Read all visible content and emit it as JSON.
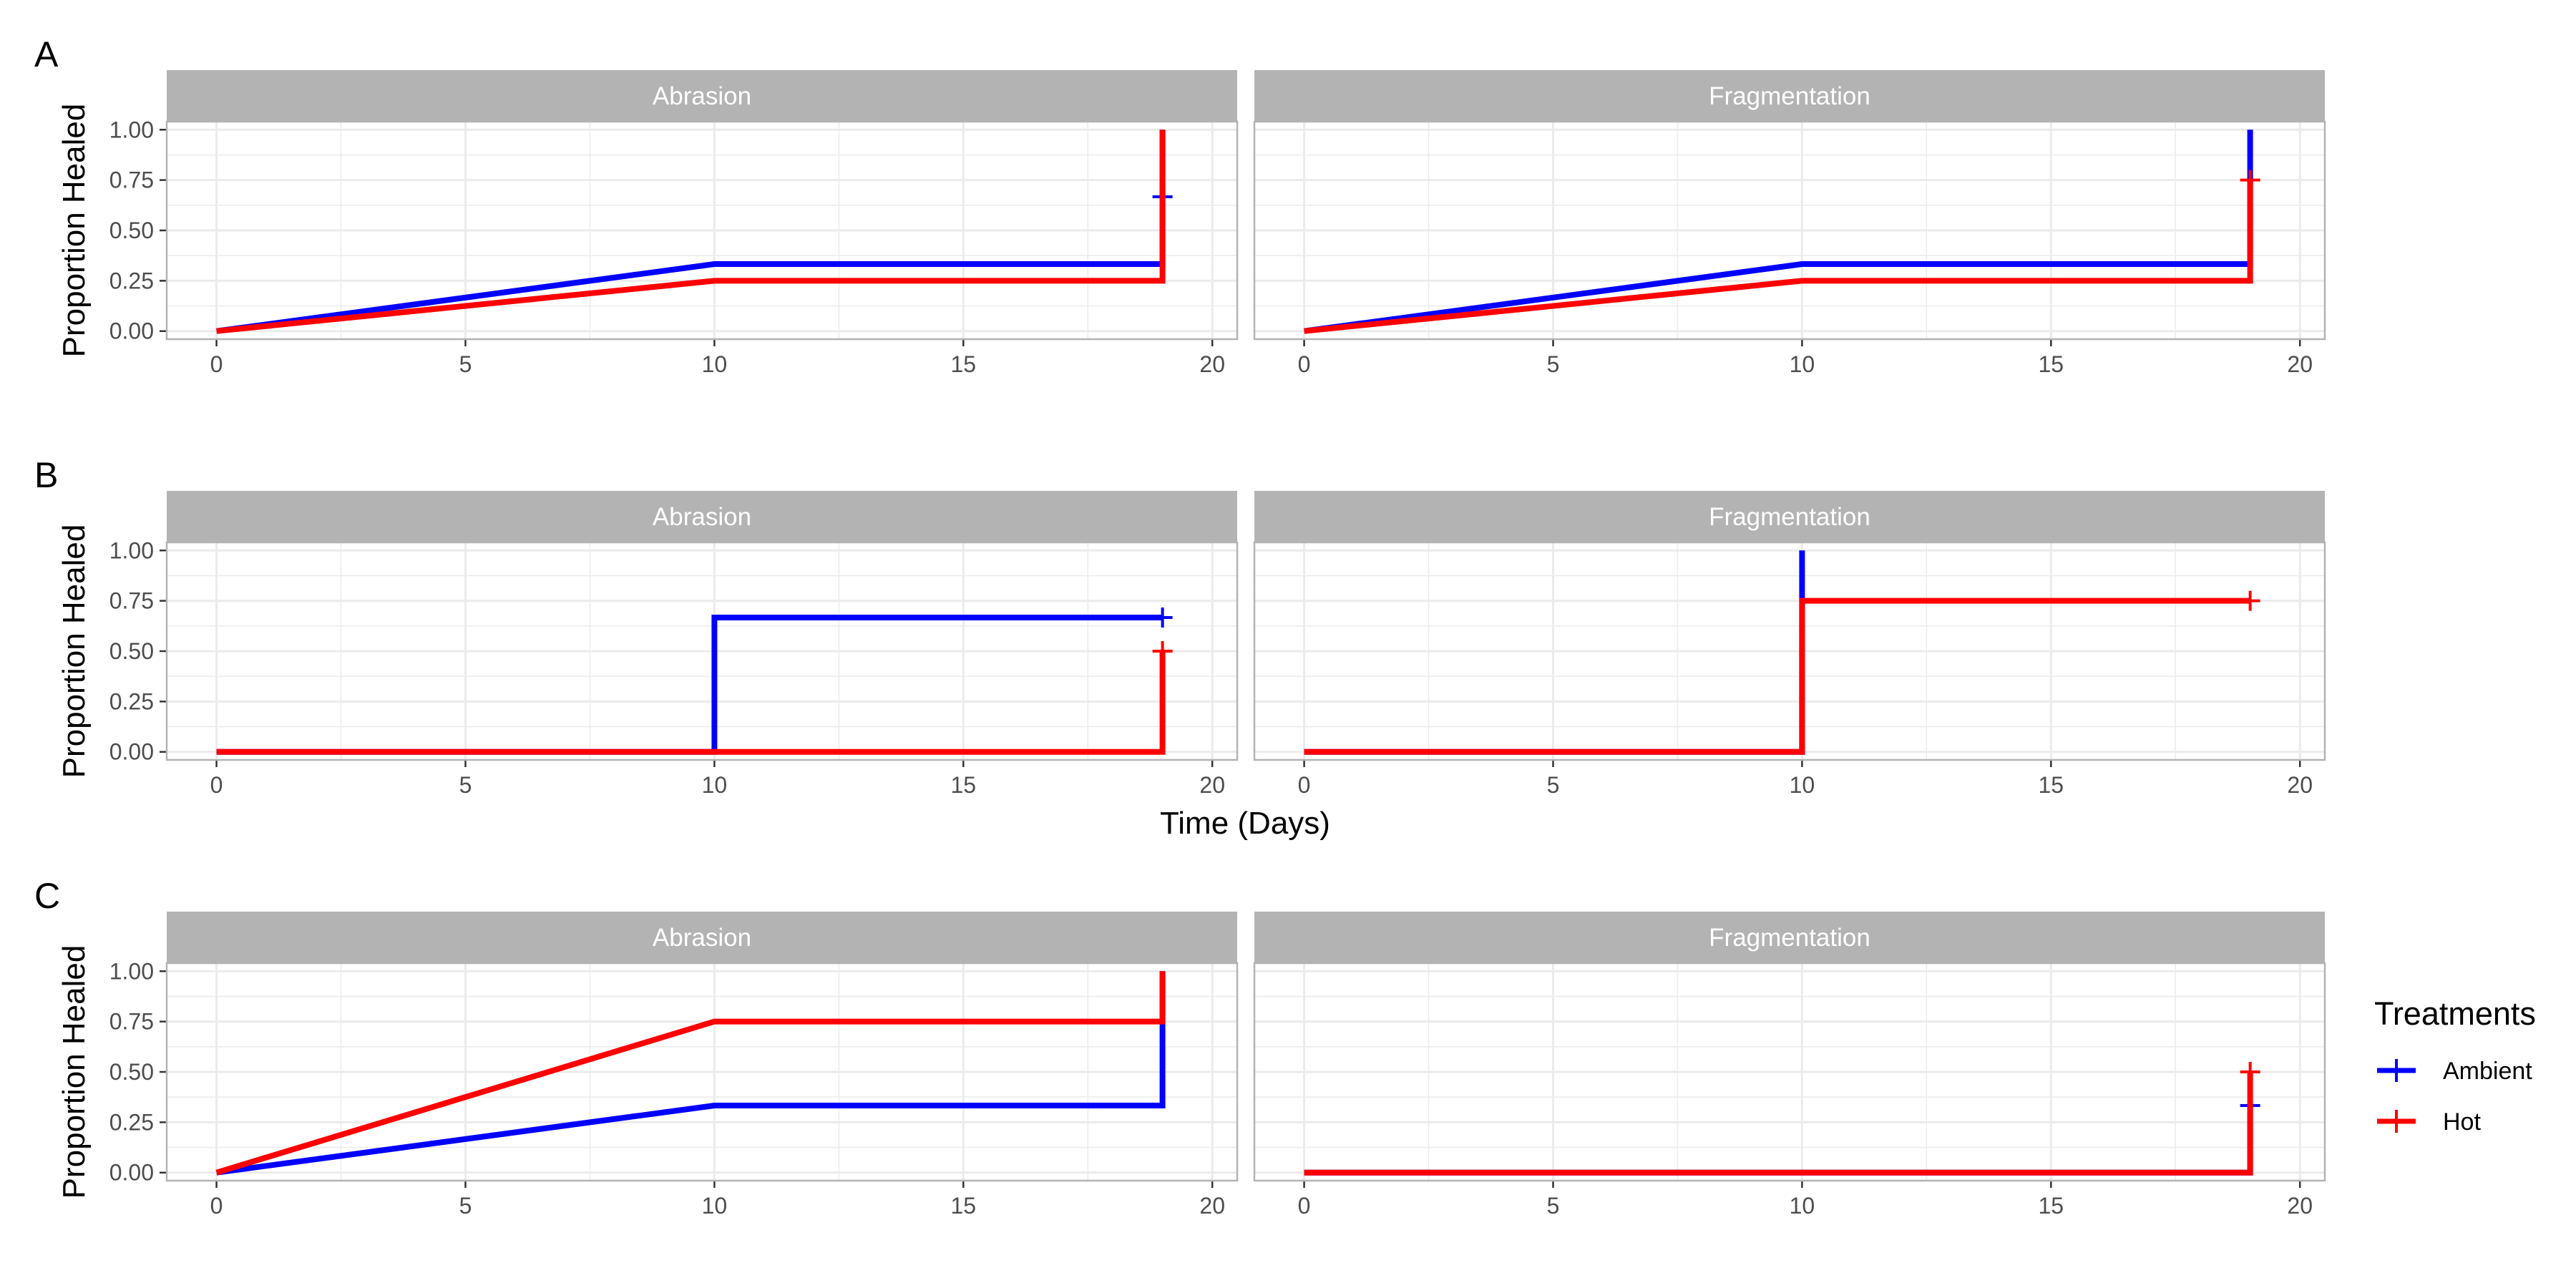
{
  "colors": {
    "Ambient": "#0000ff",
    "Hot": "#ff0000",
    "strip_bg": "#b3b3b3",
    "grid": "#ebebeb",
    "border": "#b3b3b3"
  },
  "x_axis_title": "Time (Days)",
  "y_axis_title": "Proportion Healed",
  "legend": {
    "title": "Treatments",
    "items": [
      {
        "label": "Ambient",
        "color": "#0000ff"
      },
      {
        "label": "Hot",
        "color": "#ff0000"
      }
    ]
  },
  "chart_data": [
    {
      "type": "line",
      "step": true,
      "tag": "A",
      "xlabel": "",
      "ylabel": "Proportion Healed",
      "xlim": [
        -1,
        20.5
      ],
      "ylim": [
        -0.04,
        1.04
      ],
      "x_ticks": [
        0,
        5,
        10,
        15,
        20
      ],
      "y_ticks": [
        "0.00",
        "0.25",
        "0.50",
        "0.75",
        "1.00"
      ],
      "facets": [
        {
          "strip": "Abrasion",
          "series": [
            {
              "name": "Ambient",
              "x": [
                0,
                10,
                19,
                19
              ],
              "y": [
                0,
                0.333,
                0.333,
                1.0
              ],
              "censor": [
                [
                  19,
                  0.667
                ]
              ]
            },
            {
              "name": "Hot",
              "x": [
                0,
                10,
                19,
                19
              ],
              "y": [
                0,
                0.25,
                0.25,
                1.0
              ],
              "censor": []
            }
          ]
        },
        {
          "strip": "Fragmentation",
          "series": [
            {
              "name": "Ambient",
              "x": [
                0,
                10,
                19,
                19
              ],
              "y": [
                0,
                0.333,
                0.333,
                1.0
              ],
              "censor": []
            },
            {
              "name": "Hot",
              "x": [
                0,
                10,
                19,
                19
              ],
              "y": [
                0,
                0.25,
                0.25,
                0.75
              ],
              "censor": [
                [
                  19,
                  0.75
                ]
              ]
            }
          ]
        }
      ]
    },
    {
      "type": "line",
      "step": true,
      "tag": "B",
      "xlabel": "Time (Days)",
      "ylabel": "Proportion Healed",
      "xlim": [
        -1,
        20.5
      ],
      "ylim": [
        -0.04,
        1.04
      ],
      "x_ticks": [
        0,
        5,
        10,
        15,
        20
      ],
      "y_ticks": [
        "0.00",
        "0.25",
        "0.50",
        "0.75",
        "1.00"
      ],
      "facets": [
        {
          "strip": "Abrasion",
          "series": [
            {
              "name": "Ambient",
              "x": [
                0,
                10,
                10,
                19
              ],
              "y": [
                0,
                0,
                0.667,
                0.667
              ],
              "censor": [
                [
                  19,
                  0.667
                ]
              ]
            },
            {
              "name": "Hot",
              "x": [
                0,
                19,
                19
              ],
              "y": [
                0,
                0,
                0.5
              ],
              "censor": [
                [
                  19,
                  0.5
                ]
              ]
            }
          ]
        },
        {
          "strip": "Fragmentation",
          "series": [
            {
              "name": "Ambient",
              "x": [
                0,
                10,
                10
              ],
              "y": [
                0,
                0,
                1.0
              ],
              "censor": []
            },
            {
              "name": "Hot",
              "x": [
                0,
                10,
                10,
                19
              ],
              "y": [
                0,
                0,
                0.75,
                0.75
              ],
              "censor": [
                [
                  19,
                  0.75
                ]
              ]
            }
          ]
        }
      ]
    },
    {
      "type": "line",
      "step": true,
      "tag": "C",
      "xlabel": "",
      "ylabel": "Proportion Healed",
      "xlim": [
        -1,
        20.5
      ],
      "ylim": [
        -0.04,
        1.04
      ],
      "x_ticks": [
        0,
        5,
        10,
        15,
        20
      ],
      "y_ticks": [
        "0.00",
        "0.25",
        "0.50",
        "0.75",
        "1.00"
      ],
      "facets": [
        {
          "strip": "Abrasion",
          "series": [
            {
              "name": "Ambient",
              "x": [
                0,
                10,
                19,
                19
              ],
              "y": [
                0,
                0.333,
                0.333,
                1.0
              ],
              "censor": []
            },
            {
              "name": "Hot",
              "x": [
                0,
                10,
                19,
                19
              ],
              "y": [
                0,
                0.75,
                0.75,
                1.0
              ],
              "censor": []
            }
          ]
        },
        {
          "strip": "Fragmentation",
          "series": [
            {
              "name": "Ambient",
              "x": [
                0,
                19,
                19
              ],
              "y": [
                0,
                0,
                0.333
              ],
              "censor": [
                [
                  19,
                  0.333
                ]
              ]
            },
            {
              "name": "Hot",
              "x": [
                0,
                19,
                19
              ],
              "y": [
                0,
                0,
                0.5
              ],
              "censor": [
                [
                  19,
                  0.5
                ]
              ]
            }
          ]
        }
      ]
    }
  ]
}
